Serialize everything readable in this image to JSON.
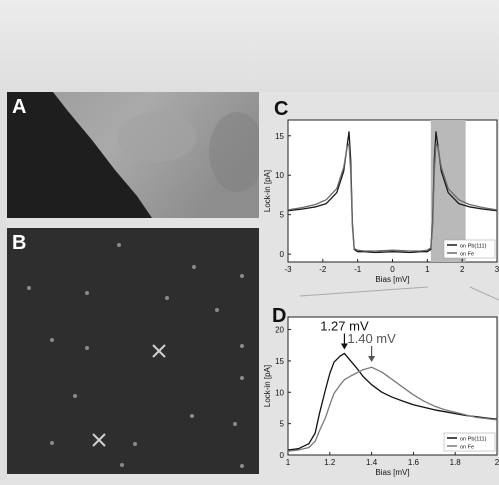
{
  "panels": {
    "a": {
      "label": "A"
    },
    "b": {
      "label": "B"
    },
    "c": {
      "label": "C"
    },
    "d": {
      "label": "D"
    }
  },
  "chart_data": [
    {
      "type": "line",
      "panel": "C",
      "xlabel": "Bias [mV]",
      "ylabel": "Lock-in [pA]",
      "xlim": [
        -3,
        3
      ],
      "ylim": [
        -1,
        17
      ],
      "xticks": [
        -3,
        -2,
        -1,
        0,
        1,
        2,
        3
      ],
      "yticks": [
        0,
        5,
        10,
        15
      ],
      "highlight_region": [
        1.1,
        2.1
      ],
      "legend": {
        "placement": "bottom-right"
      },
      "series": [
        {
          "name": "on Pb(111)",
          "color": "#1a1a1a",
          "x": [
            -3.0,
            -2.6,
            -2.2,
            -1.9,
            -1.6,
            -1.4,
            -1.3,
            -1.25,
            -1.2,
            -1.15,
            -1.1,
            -1.0,
            -0.8,
            -0.5,
            0.0,
            0.5,
            0.8,
            1.0,
            1.1,
            1.15,
            1.2,
            1.25,
            1.3,
            1.4,
            1.6,
            1.9,
            2.2,
            2.6,
            3.0
          ],
          "y": [
            5.5,
            5.7,
            6.0,
            6.4,
            7.8,
            10.5,
            13.8,
            15.5,
            12.0,
            4.0,
            0.6,
            0.3,
            0.3,
            0.2,
            0.3,
            0.2,
            0.3,
            0.3,
            0.6,
            4.0,
            12.0,
            15.5,
            13.8,
            10.5,
            7.8,
            6.4,
            6.0,
            5.7,
            5.5
          ]
        },
        {
          "name": "on Fe",
          "color": "#6a6a6a",
          "x": [
            -3.0,
            -2.6,
            -2.2,
            -1.9,
            -1.6,
            -1.4,
            -1.3,
            -1.25,
            -1.2,
            -1.15,
            -1.1,
            -1.0,
            -0.8,
            -0.5,
            0.0,
            0.5,
            0.8,
            1.0,
            1.1,
            1.15,
            1.2,
            1.25,
            1.3,
            1.4,
            1.6,
            1.9,
            2.2,
            2.6,
            3.0
          ],
          "y": [
            5.6,
            5.9,
            6.3,
            6.9,
            8.3,
            11.0,
            13.6,
            14.0,
            10.5,
            3.5,
            0.7,
            0.5,
            0.4,
            0.4,
            0.5,
            0.4,
            0.4,
            0.5,
            0.8,
            3.5,
            10.5,
            14.0,
            13.6,
            11.0,
            8.3,
            6.9,
            6.3,
            5.9,
            5.6
          ]
        }
      ]
    },
    {
      "type": "line",
      "panel": "D",
      "xlabel": "Bias [mV]",
      "ylabel": "Lock-in [pA]",
      "xlim": [
        1.0,
        2.0
      ],
      "ylim": [
        0,
        22
      ],
      "xticks": [
        1.0,
        1.2,
        1.4,
        1.6,
        1.8,
        2.0
      ],
      "yticks": [
        0,
        5,
        10,
        15,
        20
      ],
      "annotations": [
        {
          "text": "1.27 mV",
          "x": 1.27,
          "y": 16.5,
          "color": "#111111"
        },
        {
          "text": "1.40 mV",
          "x": 1.4,
          "y": 14.5,
          "color": "#555555"
        }
      ],
      "legend": {
        "placement": "bottom-right"
      },
      "series": [
        {
          "name": "on Pb(111)",
          "color": "#111111",
          "x": [
            1.0,
            1.05,
            1.1,
            1.13,
            1.15,
            1.18,
            1.2,
            1.22,
            1.25,
            1.27,
            1.3,
            1.33,
            1.36,
            1.4,
            1.45,
            1.5,
            1.55,
            1.6,
            1.65,
            1.7,
            1.75,
            1.8,
            1.85,
            1.9,
            1.95,
            2.0
          ],
          "y": [
            0.8,
            1.0,
            1.8,
            3.5,
            6.5,
            10.5,
            13.0,
            14.8,
            15.8,
            16.2,
            15.0,
            13.8,
            12.5,
            11.2,
            10.0,
            9.2,
            8.6,
            8.0,
            7.6,
            7.2,
            6.9,
            6.6,
            6.3,
            6.1,
            5.9,
            5.7
          ]
        },
        {
          "name": "on Fe",
          "color": "#7a7a7a",
          "x": [
            1.0,
            1.05,
            1.1,
            1.13,
            1.15,
            1.18,
            1.2,
            1.22,
            1.25,
            1.27,
            1.3,
            1.33,
            1.36,
            1.4,
            1.45,
            1.5,
            1.55,
            1.6,
            1.65,
            1.7,
            1.75,
            1.8,
            1.85,
            1.9,
            1.95,
            2.0
          ],
          "y": [
            0.6,
            0.8,
            1.2,
            2.2,
            3.8,
            6.0,
            8.0,
            9.8,
            11.2,
            12.0,
            12.6,
            13.1,
            13.6,
            14.0,
            13.2,
            12.0,
            10.8,
            9.6,
            8.6,
            7.8,
            7.2,
            6.8,
            6.4,
            6.0,
            5.8,
            5.6
          ]
        }
      ]
    }
  ]
}
